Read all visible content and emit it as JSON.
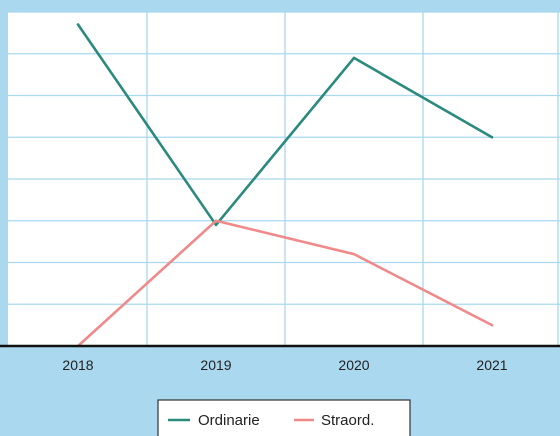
{
  "chart_data": {
    "type": "line",
    "title": "",
    "xlabel": "",
    "ylabel": "",
    "categories": [
      "2018",
      "2019",
      "2020",
      "2021"
    ],
    "ylim": [
      0,
      8
    ],
    "grid": true,
    "legend_position": "bottom-center",
    "series": [
      {
        "name": "Ordinarie",
        "values": [
          7.7,
          2.9,
          6.9,
          5.0
        ],
        "color": "#2a8a7e"
      },
      {
        "name": "Straord.",
        "values": [
          0.0,
          3.0,
          2.2,
          0.5
        ],
        "color": "#f08a8a"
      }
    ]
  },
  "colors": {
    "background": "#a9d8ef",
    "plot_area": "#ffffff",
    "grid": "#a9d8ef",
    "axis": "#111111"
  }
}
